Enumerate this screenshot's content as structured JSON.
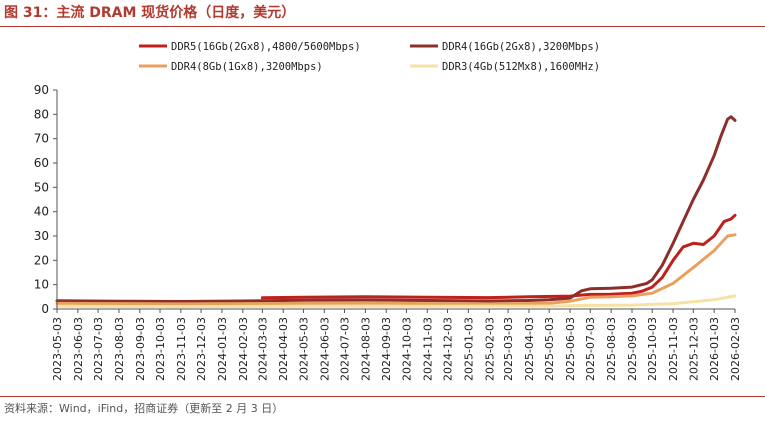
{
  "header": {
    "title": "图 31：主流 DRAM 现货价格（日度，美元）"
  },
  "footer": {
    "source": "资料来源：Wind，iFind，招商证券（更新至 2 月 3 日）"
  },
  "chart_data": {
    "type": "line",
    "title": "",
    "xlabel": "",
    "ylabel": "",
    "ylim": [
      0,
      90
    ],
    "yticks": [
      0,
      10,
      20,
      30,
      40,
      50,
      60,
      70,
      80,
      90
    ],
    "x_ticks": [
      "2023-05-03",
      "2023-06-03",
      "2023-07-03",
      "2023-08-03",
      "2023-09-03",
      "2023-10-03",
      "2023-11-03",
      "2023-12-03",
      "2024-01-03",
      "2024-02-03",
      "2024-03-03",
      "2024-04-03",
      "2024-05-03",
      "2024-06-03",
      "2024-07-03",
      "2024-08-03",
      "2024-09-03",
      "2024-10-03",
      "2024-11-03",
      "2024-12-03",
      "2025-01-03",
      "2025-02-03",
      "2025-03-03",
      "2025-04-03",
      "2025-05-03",
      "2025-06-03",
      "2025-07-03",
      "2025-08-03",
      "2025-09-03",
      "2025-10-03",
      "2025-11-03",
      "2025-12-03",
      "2026-01-03",
      "2026-02-03"
    ],
    "grid": false,
    "legend_position": "top",
    "series": [
      {
        "name": "DDR5(16Gb(2Gx8),4800/5600Mbps)",
        "color": "#c0201c",
        "points": [
          [
            "2024-03-03",
            4.6
          ],
          [
            "2024-05-03",
            4.8
          ],
          [
            "2024-08-03",
            5.0
          ],
          [
            "2024-11-03",
            4.8
          ],
          [
            "2025-02-03",
            4.7
          ],
          [
            "2025-04-03",
            5.0
          ],
          [
            "2025-06-03",
            5.3
          ],
          [
            "2025-06-15",
            5.6
          ],
          [
            "2025-07-03",
            6.0
          ],
          [
            "2025-08-03",
            6.1
          ],
          [
            "2025-09-03",
            6.5
          ],
          [
            "2025-09-18",
            7.3
          ],
          [
            "2025-10-03",
            9.0
          ],
          [
            "2025-10-18",
            13.0
          ],
          [
            "2025-11-03",
            20.0
          ],
          [
            "2025-11-18",
            25.5
          ],
          [
            "2025-12-03",
            27.0
          ],
          [
            "2025-12-18",
            26.5
          ],
          [
            "2026-01-03",
            30.0
          ],
          [
            "2026-01-18",
            36.0
          ],
          [
            "2026-01-28",
            37.0
          ],
          [
            "2026-02-03",
            38.5
          ]
        ]
      },
      {
        "name": "DDR4(16Gb(2Gx8),3200Mbps)",
        "color": "#8c2f2a",
        "points": [
          [
            "2023-05-03",
            3.4
          ],
          [
            "2023-08-03",
            3.2
          ],
          [
            "2023-11-03",
            3.1
          ],
          [
            "2024-02-03",
            3.3
          ],
          [
            "2024-05-03",
            3.6
          ],
          [
            "2024-08-03",
            3.7
          ],
          [
            "2024-11-03",
            3.5
          ],
          [
            "2025-02-03",
            3.3
          ],
          [
            "2025-04-03",
            3.5
          ],
          [
            "2025-05-03",
            3.8
          ],
          [
            "2025-06-03",
            4.5
          ],
          [
            "2025-06-20",
            7.5
          ],
          [
            "2025-07-03",
            8.3
          ],
          [
            "2025-08-03",
            8.5
          ],
          [
            "2025-09-03",
            9.0
          ],
          [
            "2025-09-25",
            10.5
          ],
          [
            "2025-10-03",
            12.0
          ],
          [
            "2025-10-18",
            18.0
          ],
          [
            "2025-11-03",
            27.0
          ],
          [
            "2025-11-18",
            36.0
          ],
          [
            "2025-12-03",
            45.0
          ],
          [
            "2025-12-18",
            53.0
          ],
          [
            "2026-01-03",
            63.0
          ],
          [
            "2026-01-13",
            71.0
          ],
          [
            "2026-01-23",
            78.0
          ],
          [
            "2026-01-28",
            79.0
          ],
          [
            "2026-02-03",
            77.5
          ]
        ]
      },
      {
        "name": "DDR4(8Gb(1Gx8),3200Mbps)",
        "color": "#e8a05e",
        "points": [
          [
            "2023-05-03",
            2.3
          ],
          [
            "2023-08-03",
            2.2
          ],
          [
            "2023-11-03",
            2.1
          ],
          [
            "2024-02-03",
            2.2
          ],
          [
            "2024-05-03",
            2.3
          ],
          [
            "2024-08-03",
            2.4
          ],
          [
            "2024-11-03",
            2.2
          ],
          [
            "2025-02-03",
            2.1
          ],
          [
            "2025-04-03",
            2.2
          ],
          [
            "2025-05-03",
            2.4
          ],
          [
            "2025-06-03",
            3.2
          ],
          [
            "2025-07-03",
            4.8
          ],
          [
            "2025-08-03",
            5.0
          ],
          [
            "2025-09-03",
            5.4
          ],
          [
            "2025-10-03",
            6.5
          ],
          [
            "2025-11-03",
            10.5
          ],
          [
            "2025-12-03",
            17.0
          ],
          [
            "2026-01-03",
            24.0
          ],
          [
            "2026-01-23",
            30.0
          ],
          [
            "2026-02-03",
            30.5
          ]
        ]
      },
      {
        "name": "DDR3(4Gb(512Mx8),1600MHz)",
        "color": "#f6e2a4",
        "points": [
          [
            "2023-05-03",
            1.1
          ],
          [
            "2023-11-03",
            1.0
          ],
          [
            "2024-05-03",
            1.1
          ],
          [
            "2024-11-03",
            1.1
          ],
          [
            "2025-05-03",
            1.2
          ],
          [
            "2025-07-03",
            1.5
          ],
          [
            "2025-09-03",
            1.6
          ],
          [
            "2025-11-03",
            2.2
          ],
          [
            "2025-12-03",
            3.0
          ],
          [
            "2026-01-03",
            3.8
          ],
          [
            "2026-02-03",
            5.4
          ]
        ]
      }
    ]
  }
}
